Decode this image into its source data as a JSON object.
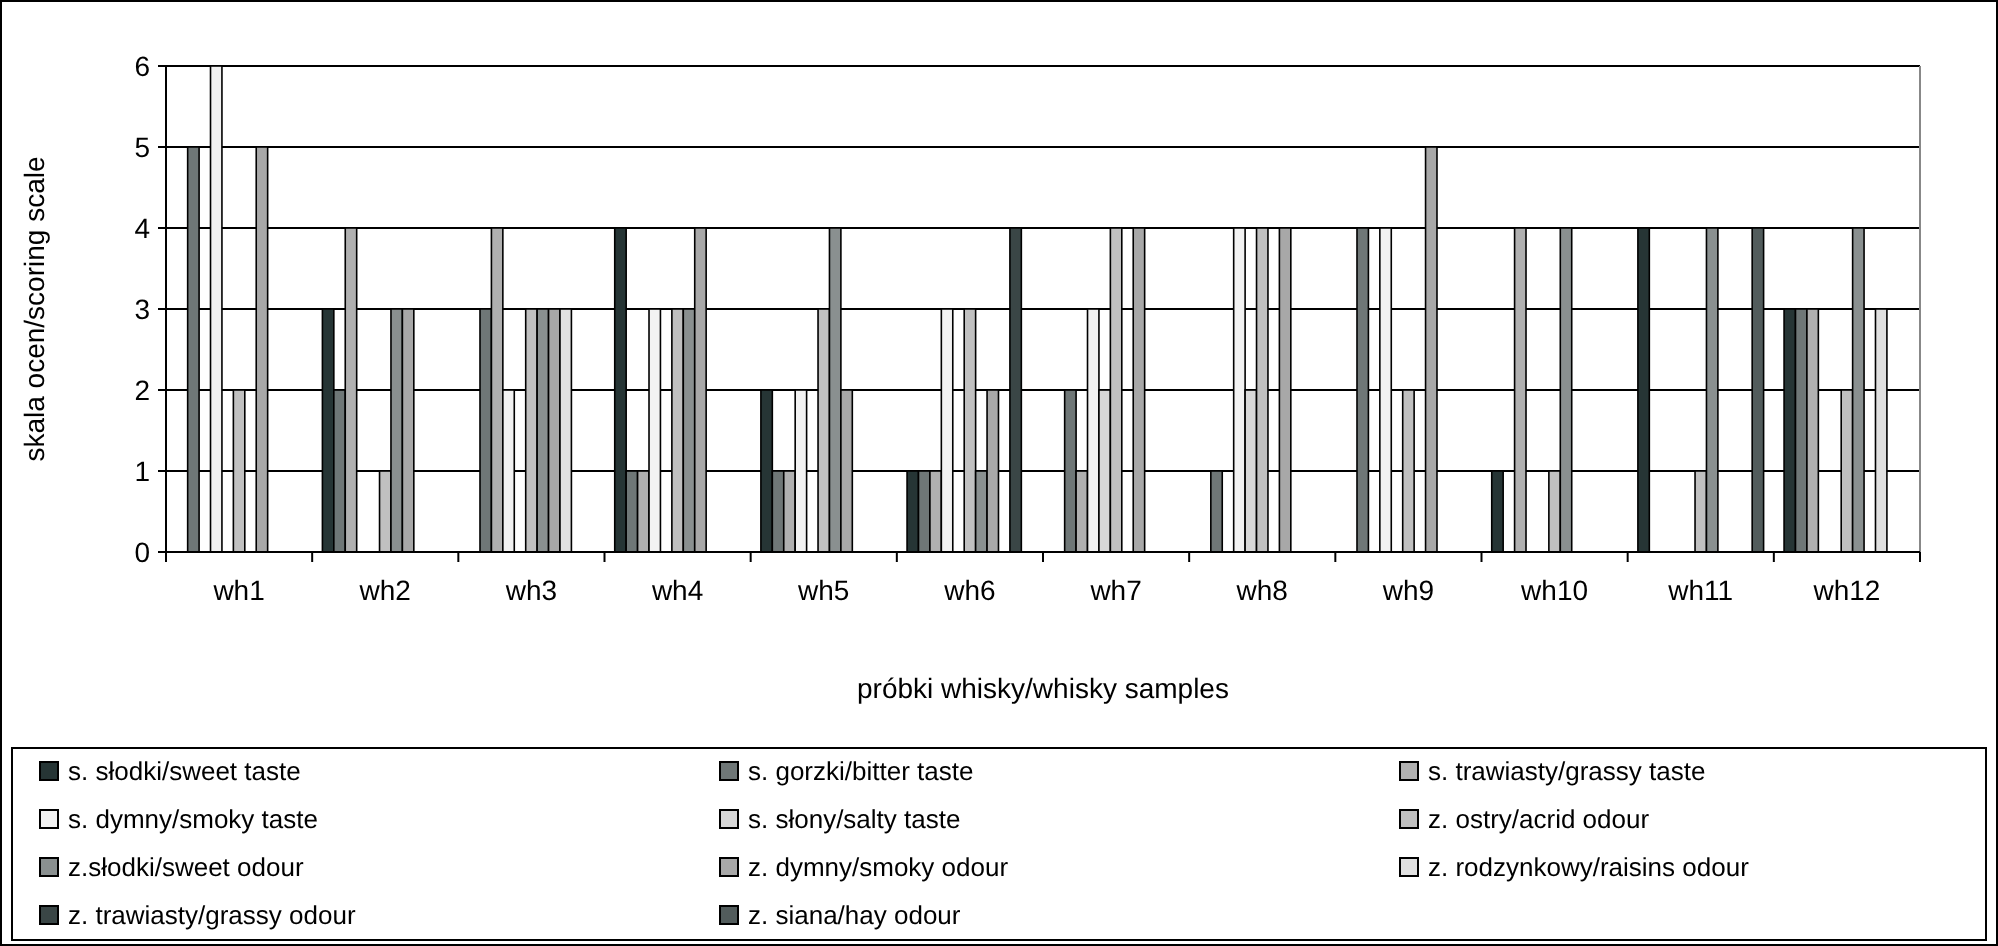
{
  "chart_data": {
    "type": "bar",
    "xlabel": "próbki whisky/whisky samples",
    "ylabel": "skala ocen/scoring scale",
    "categories": [
      "wh1",
      "wh2",
      "wh3",
      "wh4",
      "wh5",
      "wh6",
      "wh7",
      "wh8",
      "wh9",
      "wh10",
      "wh11",
      "wh12"
    ],
    "series": [
      {
        "name": "s. słodki/sweet taste",
        "color": "#263535",
        "values": [
          0,
          3,
          0,
          4,
          2,
          1,
          0,
          0,
          0,
          1,
          4,
          3
        ]
      },
      {
        "name": "s. gorzki/bitter taste",
        "color": "#6f7777",
        "values": [
          5,
          2,
          3,
          1,
          1,
          1,
          2,
          1,
          4,
          0,
          0,
          3
        ]
      },
      {
        "name": "s. trawiasty/grassy taste",
        "color": "#b0b0b0",
        "values": [
          0,
          4,
          4,
          1,
          1,
          1,
          1,
          0,
          0,
          4,
          0,
          3
        ]
      },
      {
        "name": "s. dymny/smoky taste",
        "color": "#f2f2f2",
        "values": [
          6,
          0,
          2,
          3,
          2,
          3,
          3,
          4,
          4,
          0,
          0,
          0
        ]
      },
      {
        "name": "s. słony/salty taste",
        "color": "#d8d8d8",
        "values": [
          0,
          0,
          0,
          0,
          0,
          0,
          2,
          2,
          0,
          0,
          0,
          0
        ]
      },
      {
        "name": "z. ostry/acrid odour",
        "color": "#c0c0c0",
        "values": [
          2,
          1,
          3,
          3,
          3,
          3,
          4,
          4,
          2,
          1,
          1,
          2
        ]
      },
      {
        "name": "z.słodki/sweet odour",
        "color": "#8a9090",
        "values": [
          0,
          3,
          3,
          3,
          4,
          1,
          0,
          0,
          0,
          4,
          4,
          4
        ]
      },
      {
        "name": "z. dymny/smoky odour",
        "color": "#a8a8a8",
        "values": [
          5,
          3,
          3,
          4,
          2,
          2,
          4,
          4,
          5,
          0,
          0,
          0
        ]
      },
      {
        "name": "z. rodzynkowy/raisins odour",
        "color": "#e0e0e0",
        "values": [
          0,
          0,
          3,
          0,
          0,
          0,
          0,
          0,
          0,
          0,
          0,
          3
        ]
      },
      {
        "name": "z. trawiasty/grassy odour",
        "color": "#3a4646",
        "values": [
          0,
          0,
          0,
          0,
          0,
          4,
          0,
          0,
          0,
          0,
          0,
          0
        ]
      },
      {
        "name": "z. siana/hay odour",
        "color": "#525c5c",
        "values": [
          0,
          0,
          0,
          0,
          0,
          0,
          0,
          0,
          0,
          0,
          4,
          0
        ]
      }
    ],
    "ylim": [
      0,
      6
    ],
    "yticks": [
      0,
      1,
      2,
      3,
      4,
      5,
      6
    ],
    "grid": "y",
    "legend": "bottom"
  }
}
